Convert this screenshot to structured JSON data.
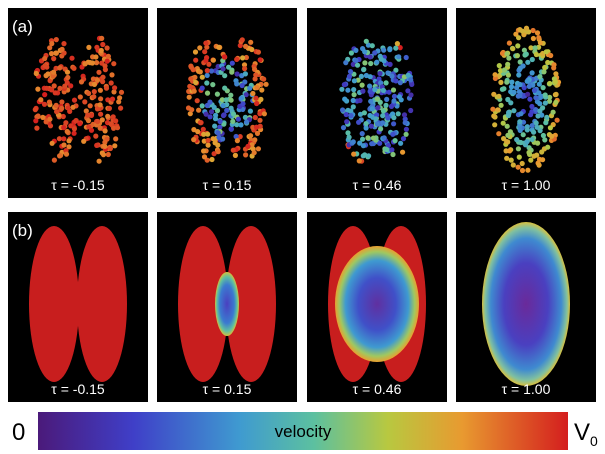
{
  "panels": {
    "a": {
      "label": "(a)",
      "taus": [
        "τ = -0.15",
        "τ = 0.15",
        "τ = 0.46",
        "τ = 1.00"
      ]
    },
    "b": {
      "label": "(b)",
      "taus": [
        "τ = -0.15",
        "τ = 0.15",
        "τ = 0.46",
        "τ = 1.00"
      ]
    }
  },
  "colorbar": {
    "min": "0",
    "title": "velocity",
    "max": {
      "base": "V",
      "sub": "0"
    }
  }
}
